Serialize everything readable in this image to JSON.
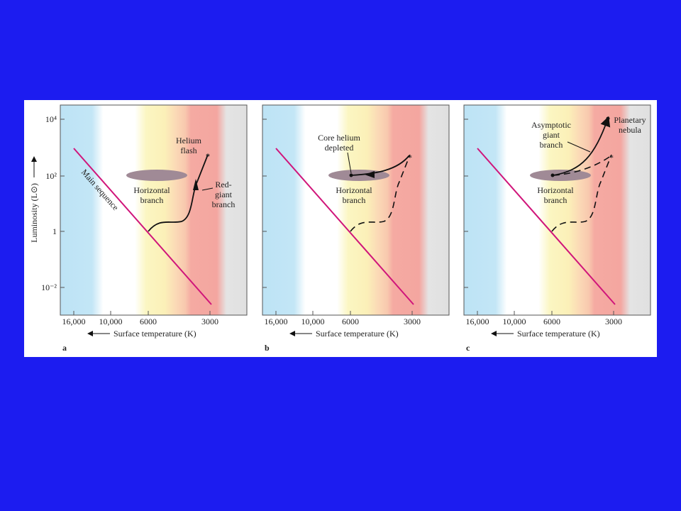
{
  "panels": [
    {
      "label": "a",
      "yaxis_label": "Luminosity (L⊙)",
      "yticks": [
        "10⁴",
        "10²",
        "1",
        "10⁻²"
      ],
      "xticks": [
        "16,000",
        "10,000",
        "6000",
        "3000"
      ],
      "xaxis_label": "Surface temperature (K)",
      "main_sequence": "Main sequence",
      "helium_flash": [
        "Helium",
        "flash"
      ],
      "horizontal_branch": [
        "Horizontal",
        "branch"
      ],
      "red_giant_branch": [
        "Red-",
        "giant",
        "branch"
      ]
    },
    {
      "label": "b",
      "xticks": [
        "16,000",
        "10,000",
        "6000",
        "3000"
      ],
      "xaxis_label": "Surface temperature (K)",
      "core_helium_depleted": [
        "Core helium",
        "depleted"
      ],
      "horizontal_branch": [
        "Horizontal",
        "branch"
      ]
    },
    {
      "label": "c",
      "xticks": [
        "16,000",
        "10,000",
        "6000",
        "3000"
      ],
      "xaxis_label": "Surface temperature (K)",
      "asymptotic_giant_branch": [
        "Asymptotic",
        "giant",
        "branch"
      ],
      "planetary_nebula": [
        "Planetary",
        "nebula"
      ],
      "horizontal_branch": [
        "Horizontal",
        "branch"
      ]
    }
  ]
}
